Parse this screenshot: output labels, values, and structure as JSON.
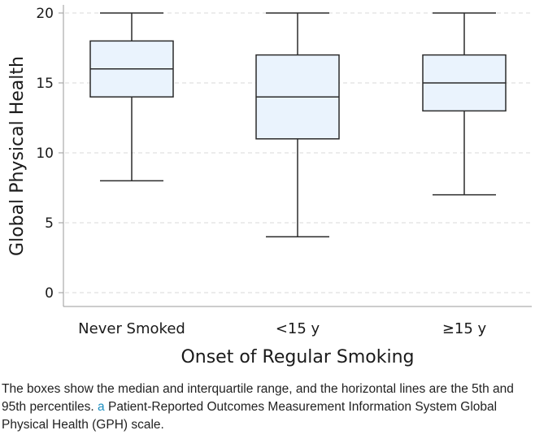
{
  "chart_data": {
    "type": "box",
    "xlabel": "Onset of Regular Smoking",
    "ylabel": "Global Physical Health",
    "ylim": [
      0,
      20
    ],
    "yticks": [
      0,
      5,
      10,
      15,
      20
    ],
    "grid": "horizontal dashed",
    "categories": [
      "Never Smoked",
      "<15 y",
      "≥15 y"
    ],
    "boxes": [
      {
        "category": "Never Smoked",
        "p5": 8,
        "q1": 14,
        "median": 16,
        "q3": 18,
        "p95": 20
      },
      {
        "category": "<15 y",
        "p5": 4,
        "q1": 11,
        "median": 14,
        "q3": 17,
        "p95": 20
      },
      {
        "category": "≥15 y",
        "p5": 7,
        "q1": 13,
        "median": 15,
        "q3": 17,
        "p95": 20
      }
    ],
    "colors": {
      "box_fill": "#eaf3fd",
      "stroke": "#2b2b2b",
      "grid": "#d9d9d9"
    }
  },
  "caption": {
    "text_main": "The boxes show the median and interquartile range, and the horizontal lines are the 5th and 95th percentiles. ",
    "footnote_marker": "a",
    "text_footnote": " Patient-Reported Outcomes Measurement Information System Global Physical Health (GPH) scale."
  }
}
